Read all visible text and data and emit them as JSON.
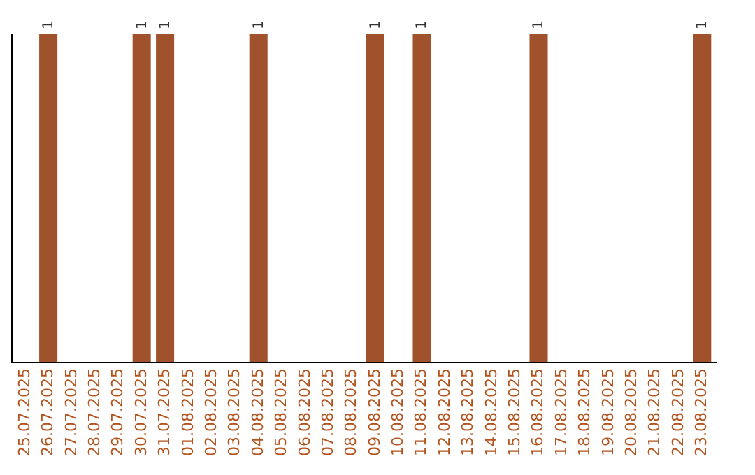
{
  "chart_data": {
    "type": "bar",
    "categories": [
      "25.07.2025",
      "26.07.2025",
      "27.07.2025",
      "28.07.2025",
      "29.07.2025",
      "30.07.2025",
      "31.07.2025",
      "01.08.2025",
      "02.08.2025",
      "03.08.2025",
      "04.08.2025",
      "05.08.2025",
      "06.08.2025",
      "07.08.2025",
      "08.08.2025",
      "09.08.2025",
      "10.08.2025",
      "11.08.2025",
      "12.08.2025",
      "13.08.2025",
      "14.08.2025",
      "15.08.2025",
      "16.08.2025",
      "17.08.2025",
      "18.08.2025",
      "19.08.2025",
      "20.08.2025",
      "21.08.2025",
      "22.08.2025",
      "23.08.2025"
    ],
    "values": [
      0,
      1,
      0,
      0,
      0,
      1,
      1,
      0,
      0,
      0,
      1,
      0,
      0,
      0,
      0,
      1,
      0,
      1,
      0,
      0,
      0,
      0,
      1,
      0,
      0,
      0,
      0,
      0,
      0,
      1
    ],
    "value_labels": [
      null,
      "1",
      null,
      null,
      null,
      "1",
      "1",
      null,
      null,
      null,
      "1",
      null,
      null,
      null,
      null,
      "1",
      null,
      "1",
      null,
      null,
      null,
      null,
      "1",
      null,
      null,
      null,
      null,
      null,
      null,
      "1"
    ],
    "color": "#a0522d",
    "grid": false,
    "tick_labels": "x"
  }
}
